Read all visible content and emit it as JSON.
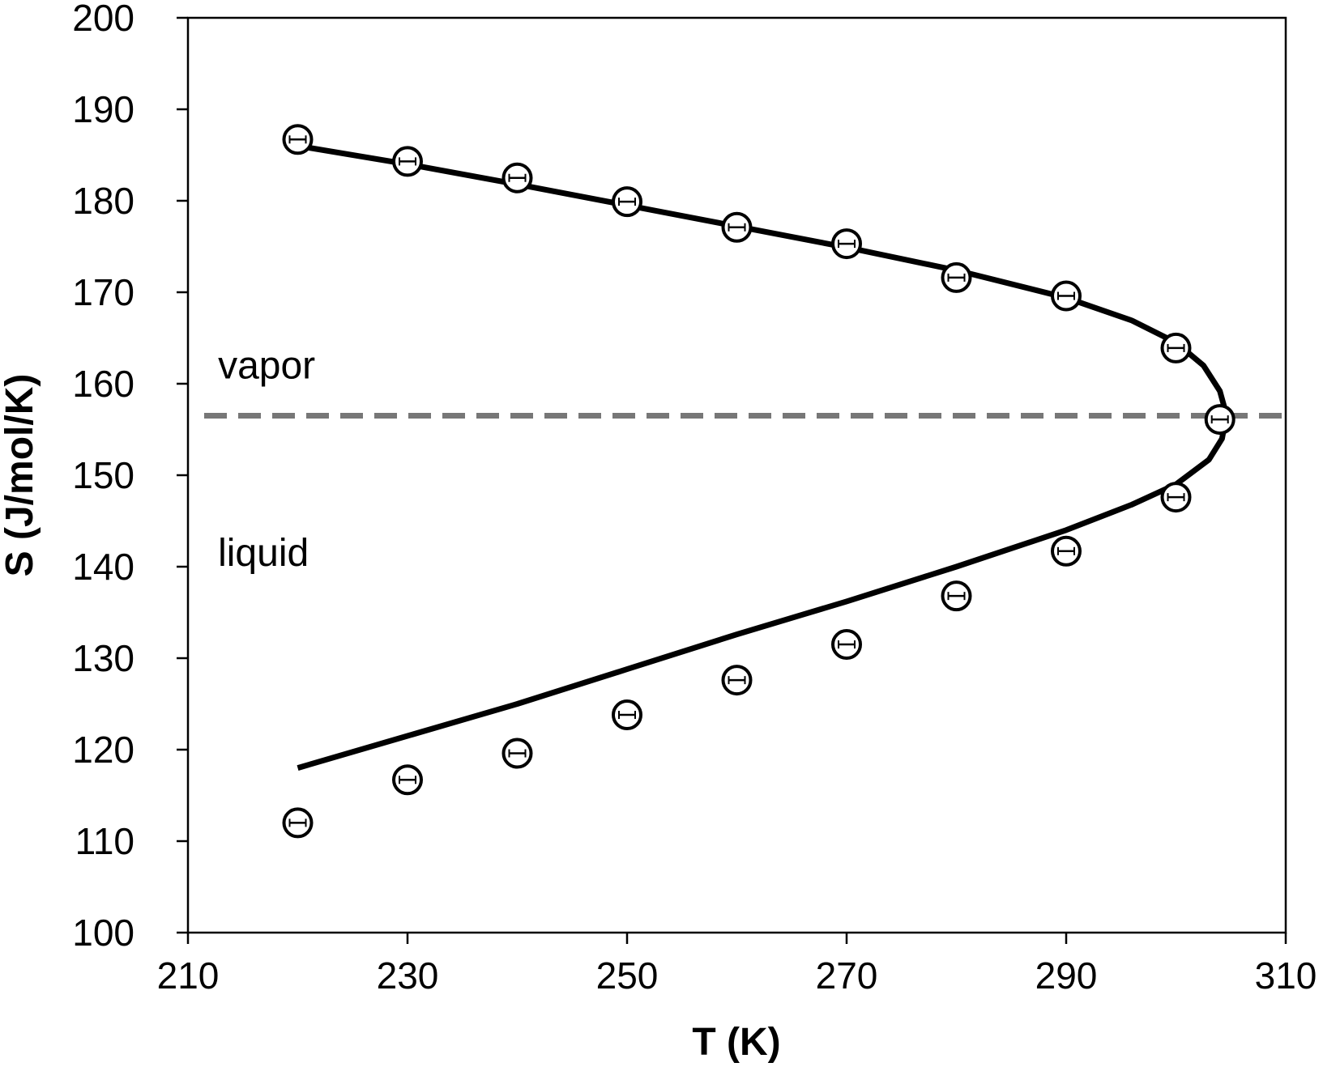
{
  "chart_data": {
    "type": "scatter",
    "title": "",
    "xlabel": "T (K)",
    "ylabel": "S (J/mol/K)",
    "xlim": [
      210,
      310
    ],
    "ylim": [
      100,
      200
    ],
    "xticks": [
      "210",
      "230",
      "250",
      "270",
      "290",
      "310"
    ],
    "yticks": [
      "100",
      "110",
      "120",
      "130",
      "140",
      "150",
      "160",
      "170",
      "180",
      "190",
      "200"
    ],
    "grid": false,
    "legend": "none",
    "annotations": [
      {
        "text": "vapor",
        "x": 212,
        "y": 162
      },
      {
        "text": "liquid",
        "x": 212,
        "y": 141.5
      }
    ],
    "reference_line": {
      "type": "horizontal",
      "y": 156.5,
      "style": "dashed",
      "color": "#777777"
    },
    "series": [
      {
        "kind": "points",
        "marker": "open-circle-with-errorbar",
        "x": [
          220,
          230,
          240,
          250,
          260,
          270,
          280,
          290,
          300,
          304,
          300,
          290,
          280,
          270,
          260,
          250,
          240,
          230,
          220
        ],
        "y": [
          186.7,
          184.3,
          182.5,
          179.9,
          177.1,
          175.3,
          171.6,
          169.6,
          163.9,
          156.1,
          147.6,
          141.7,
          136.8,
          131.5,
          127.6,
          123.8,
          119.6,
          116.7,
          112.0
        ]
      },
      {
        "kind": "line",
        "x": [
          220,
          230,
          240,
          250,
          260,
          270,
          280,
          290,
          296,
          300,
          302.5,
          304,
          304.6,
          304.2,
          303,
          300,
          296,
          290,
          280,
          270,
          260,
          250,
          240,
          230,
          220
        ],
        "y": [
          186.0,
          184.0,
          181.8,
          179.5,
          177.2,
          174.9,
          172.4,
          169.4,
          166.9,
          164.5,
          162.0,
          159.2,
          156.6,
          154.0,
          151.7,
          149.0,
          146.8,
          144.0,
          140.0,
          136.2,
          132.6,
          128.8,
          125.0,
          121.5,
          118.0
        ]
      }
    ]
  }
}
